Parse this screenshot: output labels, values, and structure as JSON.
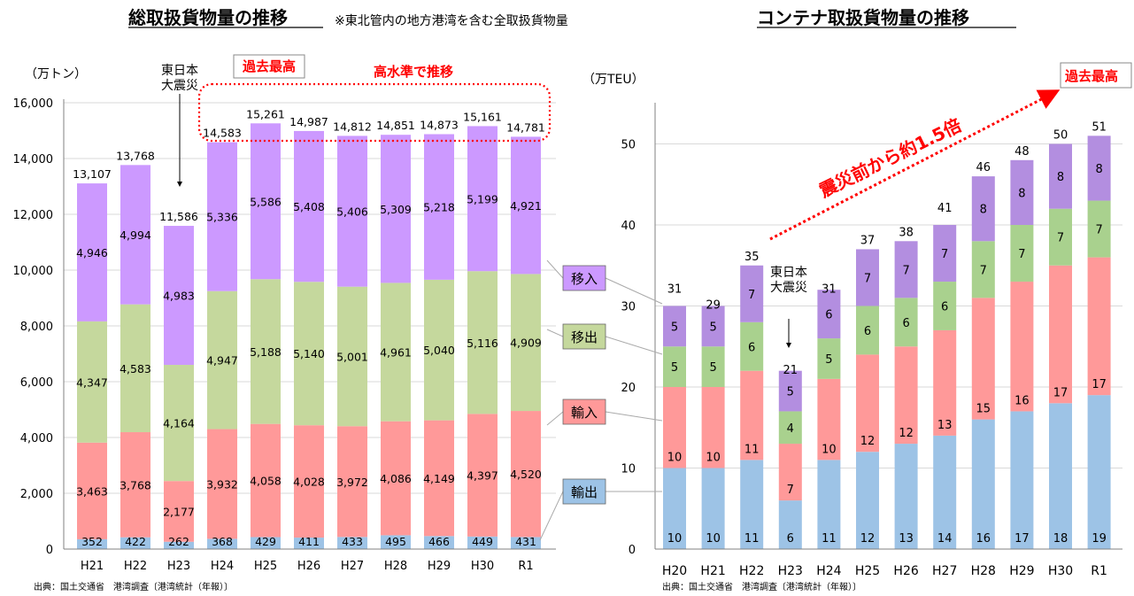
{
  "colors": {
    "export": "#9dc3e6",
    "import": "#ff9999",
    "domestic_out": "#c5d89d",
    "domestic_in": "#cc99ff",
    "container_domestic_in": "#b38ee0",
    "container_domestic_out": "#a9d18e",
    "container_import": "#ff9999",
    "container_export": "#9dc3e6",
    "red": "#ff0000"
  },
  "left_title": "総取扱貨物量の推移",
  "left_note": "※東北管内の地方港湾を含む全取扱貨物量",
  "right_title": "コンテナ取扱貨物量の推移",
  "record_label_left": "過去最高",
  "record_label_right": "過去最高",
  "high_level_label": "高水準で推移",
  "quake_label_left": "東日本 大震災",
  "quake_label_right": "東日本 大震災",
  "growth_label": "震災前から約1.5倍",
  "source_left": "出典：国土交通省　港湾調査〔港湾統計（年報）〕",
  "source_right": "出典：国土交通省　港湾調査〔港湾統計（年報）〕",
  "legend": [
    "移入",
    "移出",
    "輸入",
    "輸出"
  ],
  "chart_data": [
    {
      "type": "bar",
      "stacked": true,
      "title": "総取扱貨物量の推移",
      "ylabel": "（万トン）",
      "ylim": [
        0,
        16000
      ],
      "yticks": [
        "0",
        "2,000",
        "4,000",
        "6,000",
        "8,000",
        "10,000",
        "12,000",
        "14,000",
        "16,000"
      ],
      "categories": [
        "H21",
        "H22",
        "H23",
        "H24",
        "H25",
        "H26",
        "H27",
        "H28",
        "H29",
        "H30",
        "R1"
      ],
      "series": [
        {
          "name": "輸出",
          "values": [
            352,
            422,
            262,
            368,
            429,
            411,
            433,
            495,
            466,
            449,
            431
          ],
          "labels": [
            "352",
            "422",
            "262",
            "368",
            "429",
            "411",
            "433",
            "495",
            "466",
            "449",
            "431"
          ]
        },
        {
          "name": "輸入",
          "values": [
            3463,
            3768,
            2177,
            3932,
            4058,
            4028,
            3972,
            4086,
            4149,
            4397,
            4520
          ],
          "labels": [
            "3,463",
            "3,768",
            "2,177",
            "3,932",
            "4,058",
            "4,028",
            "3,972",
            "4,086",
            "4,149",
            "4,397",
            "4,520"
          ]
        },
        {
          "name": "移出",
          "values": [
            4347,
            4583,
            4164,
            4947,
            5188,
            5140,
            5001,
            4961,
            5040,
            5116,
            4909
          ],
          "labels": [
            "4,347",
            "4,583",
            "4,164",
            "4,947",
            "5,188",
            "5,140",
            "5,001",
            "4,961",
            "5,040",
            "5,116",
            "4,909"
          ]
        },
        {
          "name": "移入",
          "values": [
            4946,
            4994,
            4983,
            5336,
            5586,
            5408,
            5406,
            5309,
            5218,
            5199,
            4921
          ],
          "labels": [
            "4,946",
            "4,994",
            "4,983",
            "5,336",
            "5,586",
            "5,408",
            "5,406",
            "5,309",
            "5,218",
            "5,199",
            "4,921"
          ]
        }
      ],
      "totals": [
        13107,
        13768,
        11586,
        14583,
        15261,
        14987,
        14812,
        14851,
        14873,
        15161,
        14781
      ],
      "total_labels": [
        "13,107",
        "13,768",
        "11,586",
        "14,583",
        "15,261",
        "14,987",
        "14,812",
        "14,851",
        "14,873",
        "15,161",
        "14,781"
      ]
    },
    {
      "type": "bar",
      "stacked": true,
      "title": "コンテナ取扱貨物量の推移",
      "ylabel": "（万TEU）",
      "ylim": [
        0,
        55
      ],
      "yticks": [
        "0",
        "10",
        "20",
        "30",
        "40",
        "50"
      ],
      "categories": [
        "H20",
        "H21",
        "H22",
        "H23",
        "H24",
        "H25",
        "H26",
        "H27",
        "H28",
        "H29",
        "H30",
        "R1"
      ],
      "series": [
        {
          "name": "輸出",
          "values": [
            10,
            10,
            11,
            6,
            11,
            12,
            13,
            14,
            16,
            17,
            18,
            19
          ]
        },
        {
          "name": "輸入",
          "values": [
            10,
            10,
            11,
            7,
            10,
            12,
            12,
            13,
            15,
            16,
            17,
            17
          ]
        },
        {
          "name": "移出",
          "values": [
            5,
            5,
            6,
            4,
            5,
            6,
            6,
            6,
            7,
            7,
            7,
            7
          ]
        },
        {
          "name": "移入",
          "values": [
            5,
            5,
            7,
            5,
            6,
            7,
            7,
            7,
            8,
            8,
            8,
            8
          ]
        }
      ],
      "totals": [
        31,
        29,
        35,
        21,
        31,
        37,
        38,
        41,
        46,
        48,
        50,
        51
      ]
    }
  ]
}
